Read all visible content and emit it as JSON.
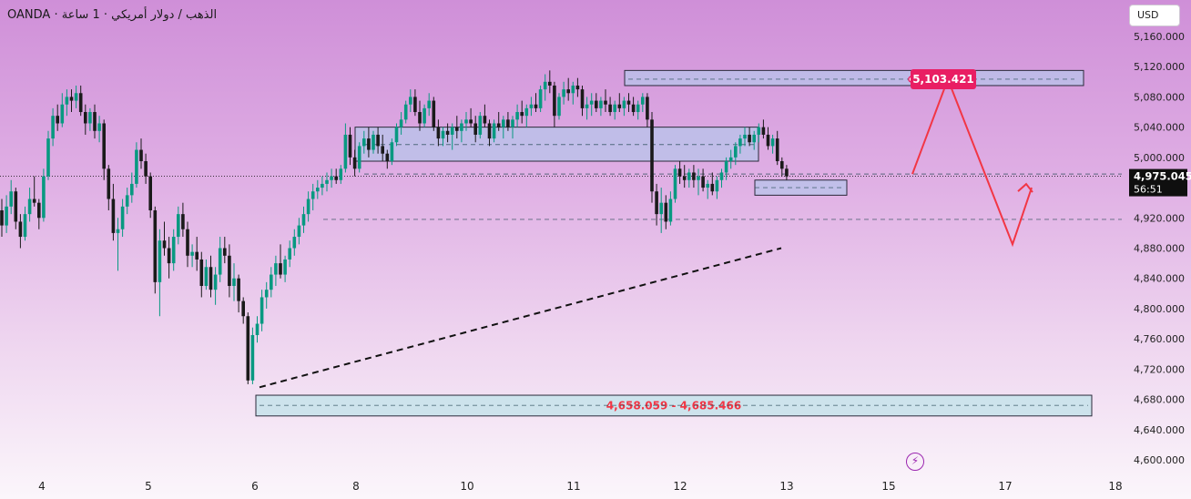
{
  "header": {
    "source": "OANDA",
    "sep": "·",
    "symbol": "الذهب / دولار أمريكي",
    "interval": "1 ساعة"
  },
  "currency_button": {
    "label": "USD"
  },
  "icons": {
    "live": "lightning-icon"
  },
  "colors": {
    "up": "#089981",
    "down": "#1a1a1a",
    "zone_fill": "#b7c4ea",
    "zone_border": "#2a2a3a",
    "target_label": "#e91e63",
    "price_label": "#0f0f0f",
    "arrow": "#f23645",
    "support_zone_fill": "#c6e3ea",
    "support_text": "#f23645"
  },
  "chart_data": {
    "type": "candlestick",
    "title": "",
    "ylim": [
      4600,
      5180
    ],
    "y_ticks": [
      5160,
      5120,
      5080,
      5040,
      5000,
      4960,
      4920,
      4880,
      4840,
      4800,
      4760,
      4720,
      4680,
      4640,
      4600
    ],
    "y_tick_labels": [
      "5,160.000",
      "5,120.000",
      "5,080.000",
      "5,040.000",
      "5,000.000",
      "",
      "4,920.000",
      "4,880.000",
      "4,840.000",
      "4,800.000",
      "4,760.000",
      "4,720.000",
      "4,680.000",
      "4,640.000",
      "4,600.000"
    ],
    "x_tick_labels": [
      "4",
      "5",
      "6",
      "8",
      "10",
      "11",
      "12",
      "13",
      "15",
      "17",
      "18"
    ],
    "x_tick_candle_index": [
      9,
      32,
      55,
      78,
      101,
      124,
      147,
      170,
      193,
      216,
      239
    ],
    "candles": [
      [
        4930,
        4945,
        4895,
        4910
      ],
      [
        4910,
        4950,
        4900,
        4935
      ],
      [
        4935,
        4970,
        4925,
        4955
      ],
      [
        4955,
        4960,
        4905,
        4915
      ],
      [
        4915,
        4925,
        4880,
        4895
      ],
      [
        4895,
        4935,
        4890,
        4925
      ],
      [
        4925,
        4960,
        4915,
        4945
      ],
      [
        4945,
        4975,
        4935,
        4940
      ],
      [
        4940,
        4945,
        4905,
        4920
      ],
      [
        4920,
        4985,
        4915,
        4975
      ],
      [
        4975,
        5035,
        4970,
        5025
      ],
      [
        5025,
        5065,
        5015,
        5055
      ],
      [
        5055,
        5070,
        5035,
        5045
      ],
      [
        5045,
        5085,
        5040,
        5070
      ],
      [
        5070,
        5090,
        5055,
        5080
      ],
      [
        5080,
        5090,
        5060,
        5075
      ],
      [
        5075,
        5095,
        5065,
        5085
      ],
      [
        5085,
        5095,
        5055,
        5060
      ],
      [
        5060,
        5070,
        5030,
        5045
      ],
      [
        5045,
        5065,
        5035,
        5060
      ],
      [
        5060,
        5070,
        5025,
        5035
      ],
      [
        5035,
        5055,
        5020,
        5045
      ],
      [
        5045,
        5050,
        4970,
        4985
      ],
      [
        4985,
        4990,
        4930,
        4945
      ],
      [
        4945,
        4965,
        4890,
        4900
      ],
      [
        4900,
        4920,
        4850,
        4905
      ],
      [
        4905,
        4945,
        4895,
        4935
      ],
      [
        4935,
        4960,
        4925,
        4950
      ],
      [
        4950,
        4980,
        4940,
        4965
      ],
      [
        4965,
        5020,
        4960,
        5010
      ],
      [
        5010,
        5025,
        4985,
        4995
      ],
      [
        4995,
        5005,
        4965,
        4975
      ],
      [
        4975,
        4980,
        4920,
        4930
      ],
      [
        4930,
        4935,
        4820,
        4835
      ],
      [
        4835,
        4905,
        4790,
        4890
      ],
      [
        4890,
        4915,
        4870,
        4880
      ],
      [
        4880,
        4895,
        4840,
        4860
      ],
      [
        4860,
        4905,
        4850,
        4895
      ],
      [
        4895,
        4935,
        4885,
        4925
      ],
      [
        4925,
        4940,
        4895,
        4905
      ],
      [
        4905,
        4915,
        4855,
        4870
      ],
      [
        4870,
        4885,
        4855,
        4875
      ],
      [
        4875,
        4895,
        4850,
        4865
      ],
      [
        4865,
        4875,
        4815,
        4830
      ],
      [
        4830,
        4865,
        4825,
        4855
      ],
      [
        4855,
        4870,
        4815,
        4825
      ],
      [
        4825,
        4855,
        4805,
        4845
      ],
      [
        4845,
        4895,
        4835,
        4880
      ],
      [
        4880,
        4895,
        4860,
        4870
      ],
      [
        4870,
        4885,
        4815,
        4830
      ],
      [
        4830,
        4860,
        4810,
        4840
      ],
      [
        4840,
        4845,
        4795,
        4810
      ],
      [
        4810,
        4815,
        4780,
        4790
      ],
      [
        4790,
        4795,
        4700,
        4705
      ],
      [
        4705,
        4775,
        4700,
        4765
      ],
      [
        4765,
        4790,
        4755,
        4780
      ],
      [
        4780,
        4825,
        4770,
        4815
      ],
      [
        4815,
        4835,
        4800,
        4825
      ],
      [
        4825,
        4855,
        4815,
        4845
      ],
      [
        4845,
        4870,
        4830,
        4860
      ],
      [
        4860,
        4885,
        4840,
        4845
      ],
      [
        4845,
        4870,
        4835,
        4865
      ],
      [
        4865,
        4890,
        4855,
        4880
      ],
      [
        4880,
        4905,
        4870,
        4895
      ],
      [
        4895,
        4920,
        4885,
        4910
      ],
      [
        4910,
        4935,
        4900,
        4925
      ],
      [
        4925,
        4955,
        4915,
        4945
      ],
      [
        4945,
        4965,
        4930,
        4955
      ],
      [
        4955,
        4970,
        4945,
        4960
      ],
      [
        4960,
        4975,
        4950,
        4965
      ],
      [
        4965,
        4980,
        4955,
        4970
      ],
      [
        4970,
        4985,
        4960,
        4975
      ],
      [
        4975,
        4985,
        4965,
        4970
      ],
      [
        4970,
        4990,
        4965,
        4985
      ],
      [
        4985,
        5045,
        4980,
        5030
      ],
      [
        5030,
        5040,
        4990,
        5000
      ],
      [
        5000,
        5010,
        4975,
        4985
      ],
      [
        4985,
        5020,
        4980,
        5015
      ],
      [
        5015,
        5035,
        5005,
        5025
      ],
      [
        5025,
        5040,
        5000,
        5010
      ],
      [
        5010,
        5035,
        5005,
        5030
      ],
      [
        5030,
        5040,
        5005,
        5015
      ],
      [
        5015,
        5030,
        4995,
        5005
      ],
      [
        5005,
        5010,
        4985,
        4995
      ],
      [
        4995,
        5025,
        4990,
        5020
      ],
      [
        5020,
        5045,
        5015,
        5040
      ],
      [
        5040,
        5060,
        5030,
        5050
      ],
      [
        5050,
        5075,
        5045,
        5070
      ],
      [
        5070,
        5090,
        5060,
        5080
      ],
      [
        5080,
        5090,
        5055,
        5060
      ],
      [
        5060,
        5075,
        5035,
        5045
      ],
      [
        5045,
        5070,
        5040,
        5065
      ],
      [
        5065,
        5085,
        5055,
        5075
      ],
      [
        5075,
        5080,
        5035,
        5040
      ],
      [
        5040,
        5050,
        5015,
        5025
      ],
      [
        5025,
        5040,
        5015,
        5035
      ],
      [
        5035,
        5045,
        5020,
        5030
      ],
      [
        5030,
        5045,
        5010,
        5040
      ],
      [
        5040,
        5055,
        5025,
        5035
      ],
      [
        5035,
        5050,
        5020,
        5045
      ],
      [
        5045,
        5060,
        5035,
        5050
      ],
      [
        5050,
        5065,
        5040,
        5045
      ],
      [
        5045,
        5055,
        5020,
        5030
      ],
      [
        5030,
        5060,
        5025,
        5055
      ],
      [
        5055,
        5070,
        5040,
        5045
      ],
      [
        5045,
        5050,
        5015,
        5025
      ],
      [
        5025,
        5050,
        5020,
        5045
      ],
      [
        5045,
        5060,
        5035,
        5040
      ],
      [
        5040,
        5055,
        5025,
        5050
      ],
      [
        5050,
        5060,
        5035,
        5040
      ],
      [
        5040,
        5055,
        5025,
        5050
      ],
      [
        5050,
        5070,
        5040,
        5060
      ],
      [
        5060,
        5075,
        5045,
        5055
      ],
      [
        5055,
        5070,
        5040,
        5065
      ],
      [
        5065,
        5080,
        5055,
        5070
      ],
      [
        5070,
        5085,
        5060,
        5065
      ],
      [
        5065,
        5095,
        5060,
        5090
      ],
      [
        5090,
        5110,
        5075,
        5100
      ],
      [
        5100,
        5115,
        5085,
        5095
      ],
      [
        5095,
        5100,
        5040,
        5055
      ],
      [
        5055,
        5085,
        5050,
        5080
      ],
      [
        5080,
        5100,
        5070,
        5090
      ],
      [
        5090,
        5105,
        5075,
        5085
      ],
      [
        5085,
        5100,
        5070,
        5095
      ],
      [
        5095,
        5105,
        5080,
        5090
      ],
      [
        5090,
        5095,
        5055,
        5065
      ],
      [
        5065,
        5080,
        5050,
        5070
      ],
      [
        5070,
        5085,
        5055,
        5075
      ],
      [
        5075,
        5085,
        5060,
        5065
      ],
      [
        5065,
        5080,
        5055,
        5075
      ],
      [
        5075,
        5090,
        5060,
        5070
      ],
      [
        5070,
        5080,
        5055,
        5060
      ],
      [
        5060,
        5075,
        5050,
        5070
      ],
      [
        5070,
        5085,
        5060,
        5065
      ],
      [
        5065,
        5080,
        5055,
        5075
      ],
      [
        5075,
        5085,
        5060,
        5070
      ],
      [
        5070,
        5080,
        5055,
        5060
      ],
      [
        5060,
        5075,
        5050,
        5070
      ],
      [
        5070,
        5085,
        5060,
        5080
      ],
      [
        5080,
        5085,
        5040,
        5050
      ],
      [
        5050,
        5060,
        4940,
        4955
      ],
      [
        4955,
        4965,
        4910,
        4925
      ],
      [
        4925,
        4960,
        4900,
        4940
      ],
      [
        4940,
        4950,
        4905,
        4915
      ],
      [
        4915,
        4955,
        4910,
        4945
      ],
      [
        4945,
        4990,
        4940,
        4985
      ],
      [
        4985,
        4995,
        4965,
        4975
      ],
      [
        4975,
        4990,
        4960,
        4970
      ],
      [
        4970,
        4985,
        4960,
        4980
      ],
      [
        4980,
        4990,
        4960,
        4970
      ],
      [
        4970,
        4985,
        4950,
        4975
      ],
      [
        4975,
        4985,
        4955,
        4960
      ],
      [
        4960,
        4970,
        4945,
        4965
      ],
      [
        4965,
        4980,
        4950,
        4955
      ],
      [
        4955,
        4975,
        4945,
        4970
      ],
      [
        4970,
        4985,
        4960,
        4980
      ],
      [
        4980,
        5000,
        4970,
        4995
      ],
      [
        4995,
        5010,
        4985,
        5000
      ],
      [
        5000,
        5020,
        4990,
        5015
      ],
      [
        5015,
        5030,
        5005,
        5025
      ],
      [
        5025,
        5040,
        5015,
        5030
      ],
      [
        5030,
        5040,
        5015,
        5020
      ],
      [
        5020,
        5035,
        5010,
        5030
      ],
      [
        5030,
        5045,
        5020,
        5040
      ],
      [
        5040,
        5050,
        5025,
        5030
      ],
      [
        5030,
        5040,
        5010,
        5015
      ],
      [
        5015,
        5030,
        5005,
        5025
      ],
      [
        5025,
        5035,
        4990,
        4995
      ],
      [
        4995,
        5000,
        4975,
        4985
      ],
      [
        4985,
        4990,
        4970,
        4975
      ]
    ],
    "current_price": {
      "value": 4975.045,
      "label": "4,975.045",
      "countdown": "56:51"
    },
    "target": {
      "value": 5103.421,
      "label": "5,103.421"
    },
    "zones": [
      {
        "name": "top-resistance-zone",
        "low": 5095,
        "high": 5115
      },
      {
        "name": "mid-resistance-zone",
        "low": 4995,
        "high": 5040
      },
      {
        "name": "small-support-zone",
        "low": 4950,
        "high": 4970
      },
      {
        "name": "bottom-support-zone",
        "low": 4658.059,
        "high": 4685.466,
        "label": "4,658.059 - 4,685.466"
      }
    ],
    "dashed_levels": [
      5103.421,
      5017,
      4978,
      4960,
      4918,
      4672
    ],
    "trendline": {
      "from": [
        4696
      ],
      "to": [
        4880
      ]
    },
    "projection_path_prices": [
      4978,
      5103.421,
      4885,
      4960
    ]
  }
}
